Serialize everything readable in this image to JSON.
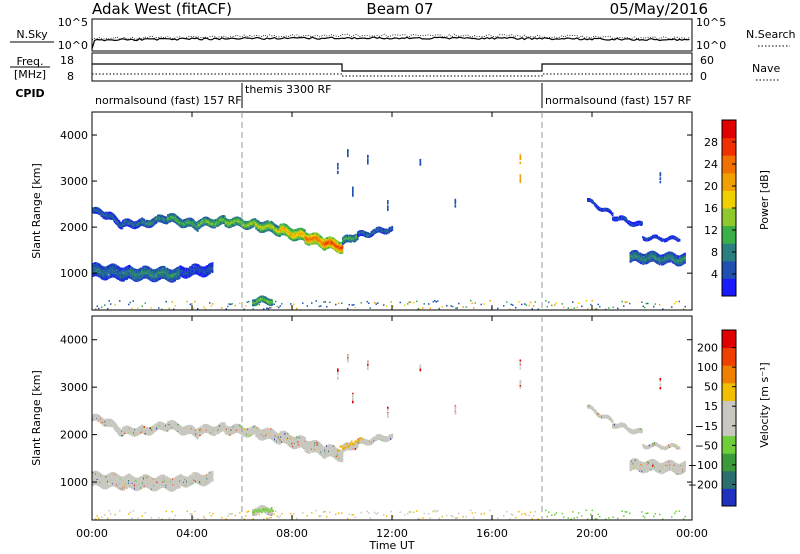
{
  "header": {
    "station": "Adak West (fitACF)",
    "beam": "Beam 07",
    "date": "05/May/2016"
  },
  "noise_panel": {
    "left_label": "N.Sky",
    "right_label": "N.Search",
    "left_ticks": [
      "10^5",
      "10^0"
    ],
    "right_ticks": [
      "10^5",
      "10^0"
    ]
  },
  "freq_panel": {
    "left_label_1": "Freq.",
    "left_label_2": "[MHz]",
    "right_label": "Nave",
    "left_ticks": [
      "18",
      "8"
    ],
    "right_ticks": [
      "60",
      "0"
    ]
  },
  "cpid": {
    "label": "CPID",
    "segments": [
      {
        "name": "normalsound (fast) 157 RF",
        "start": 0,
        "end": 6
      },
      {
        "name": "themis 3300 RF",
        "start": 6,
        "end": 18
      },
      {
        "name": "normalsound (fast) 157 RF",
        "start": 18,
        "end": 24
      }
    ]
  },
  "time_axis": {
    "label": "Time UT",
    "ticks": [
      {
        "hour": 0,
        "label": "00:00"
      },
      {
        "hour": 4,
        "label": "04:00"
      },
      {
        "hour": 8,
        "label": "08:00"
      },
      {
        "hour": 12,
        "label": "12:00"
      },
      {
        "hour": 16,
        "label": "16:00"
      },
      {
        "hour": 20,
        "label": "20:00"
      },
      {
        "hour": 24,
        "label": "00:00"
      }
    ],
    "dashed_lines": [
      6,
      18
    ]
  },
  "chart_data": [
    {
      "type": "heatmap",
      "name": "power",
      "ylabel": "Slant Range [km]",
      "ylim": [
        200,
        4500
      ],
      "yticks": [
        1000,
        2000,
        3000,
        4000
      ],
      "xlim": [
        0,
        24
      ],
      "colorbar": {
        "label": "Power [dB]",
        "min": 0,
        "max": 32,
        "ticks": [
          4,
          8,
          12,
          16,
          20,
          24,
          28
        ],
        "colors": [
          "#1a1aff",
          "#2050b0",
          "#2c7f80",
          "#3cb048",
          "#90c830",
          "#f0d000",
          "#f0a000",
          "#f07000",
          "#f03000",
          "#e00000"
        ]
      },
      "bands": [
        {
          "h0": 0.0,
          "h1": 0.5,
          "r0": 2380,
          "r1": 2300,
          "th": 130,
          "val": 6
        },
        {
          "h0": 0.5,
          "h1": 1.2,
          "r0": 2300,
          "r1": 2080,
          "th": 140,
          "val": 6
        },
        {
          "h0": 1.2,
          "h1": 2.0,
          "r0": 2080,
          "r1": 2120,
          "th": 140,
          "val": 7
        },
        {
          "h0": 2.0,
          "h1": 3.0,
          "r0": 2100,
          "r1": 2220,
          "th": 150,
          "val": 9
        },
        {
          "h0": 3.0,
          "h1": 4.2,
          "r0": 2220,
          "r1": 2050,
          "th": 160,
          "val": 12
        },
        {
          "h0": 4.2,
          "h1": 5.3,
          "r0": 2100,
          "r1": 2150,
          "th": 160,
          "val": 14
        },
        {
          "h0": 5.3,
          "h1": 6.5,
          "r0": 2150,
          "r1": 2080,
          "th": 170,
          "val": 15
        },
        {
          "h0": 6.5,
          "h1": 7.5,
          "r0": 2080,
          "r1": 1960,
          "th": 200,
          "val": 17
        },
        {
          "h0": 7.5,
          "h1": 8.5,
          "r0": 1960,
          "r1": 1820,
          "th": 230,
          "val": 21
        },
        {
          "h0": 8.5,
          "h1": 9.3,
          "r0": 1820,
          "r1": 1680,
          "th": 240,
          "val": 25
        },
        {
          "h0": 9.3,
          "h1": 10.0,
          "r0": 1680,
          "r1": 1600,
          "th": 230,
          "val": 28
        },
        {
          "h0": 10.0,
          "h1": 10.6,
          "r0": 1700,
          "r1": 1850,
          "th": 140,
          "val": 12
        },
        {
          "h0": 10.6,
          "h1": 12.0,
          "r0": 1850,
          "r1": 2000,
          "th": 110,
          "val": 7
        },
        {
          "h0": 0.0,
          "h1": 1.5,
          "r0": 1080,
          "r1": 1020,
          "th": 280,
          "val": 7
        },
        {
          "h0": 1.5,
          "h1": 3.5,
          "r0": 1020,
          "r1": 1000,
          "th": 260,
          "val": 9
        },
        {
          "h0": 3.5,
          "h1": 4.8,
          "r0": 1050,
          "r1": 1100,
          "th": 200,
          "val": 5
        },
        {
          "h0": 6.4,
          "h1": 7.2,
          "r0": 420,
          "r1": 430,
          "th": 120,
          "val": 14
        },
        {
          "h0": 19.8,
          "h1": 20.8,
          "r0": 2600,
          "r1": 2300,
          "th": 60,
          "val": 5
        },
        {
          "h0": 20.8,
          "h1": 22.0,
          "r0": 2250,
          "r1": 2050,
          "th": 70,
          "val": 5
        },
        {
          "h0": 22.0,
          "h1": 23.5,
          "r0": 1800,
          "r1": 1760,
          "th": 60,
          "val": 5
        },
        {
          "h0": 21.5,
          "h1": 23.7,
          "r0": 1370,
          "r1": 1320,
          "th": 200,
          "val": 9
        }
      ],
      "scatter": [
        {
          "h": 9.8,
          "r": 3300,
          "val": 5
        },
        {
          "h": 10.2,
          "r": 3650,
          "val": 6
        },
        {
          "h": 11.0,
          "r": 3500,
          "val": 4
        },
        {
          "h": 11.8,
          "r": 2500,
          "val": 6
        },
        {
          "h": 13.1,
          "r": 3400,
          "val": 5
        },
        {
          "h": 17.1,
          "r": 3500,
          "val": 22
        },
        {
          "h": 17.1,
          "r": 3050,
          "val": 20
        },
        {
          "h": 14.5,
          "r": 2550,
          "val": 6
        },
        {
          "h": 10.4,
          "r": 2800,
          "val": 5
        },
        {
          "h": 22.7,
          "r": 3100,
          "val": 6
        }
      ],
      "floor": {
        "r0": 230,
        "r1": 420,
        "vals": [
          4,
          6,
          8,
          12,
          16,
          20
        ]
      }
    },
    {
      "type": "heatmap",
      "name": "velocity",
      "ylabel": "Slant Range [km]",
      "ylim": [
        200,
        4500
      ],
      "yticks": [
        1000,
        2000,
        3000,
        4000
      ],
      "xlim": [
        0,
        24
      ],
      "colorbar": {
        "label": "Velocity [m s⁻¹]",
        "ticks": [
          "200",
          "100",
          "50",
          "15",
          "−15",
          "−50",
          "−100",
          "−200"
        ],
        "colors": [
          "#2030c0",
          "#2a6e6e",
          "#3a9a3a",
          "#6ecf3a",
          "#c8c8c0",
          "#c8c8c0",
          "#f0c000",
          "#f08000",
          "#f04000",
          "#e00000"
        ]
      },
      "bands_ref": "power",
      "band_color": "#c8c8c0",
      "accents": [
        {
          "h0": 9.8,
          "h1": 10.8,
          "r0": 1700,
          "r1": 1950,
          "color": "#f0b000"
        },
        {
          "h0": 6.4,
          "h1": 7.2,
          "r0": 400,
          "r1": 440,
          "color": "#6ecf3a"
        }
      ]
    }
  ],
  "colors": {
    "axis": "#000000",
    "dashed": "#999999",
    "background": "#ffffff"
  }
}
